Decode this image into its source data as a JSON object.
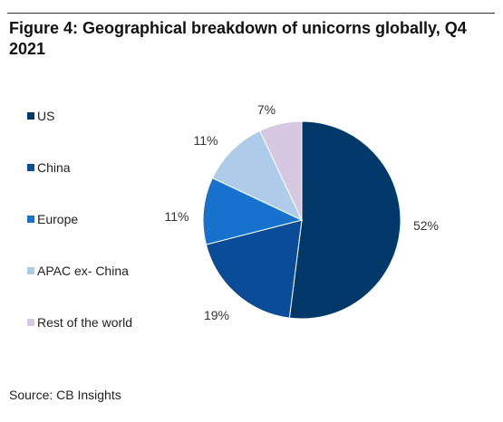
{
  "title": "Figure 4: Geographical breakdown of unicorns globally, Q4 2021",
  "source": "Source: CB Insights",
  "chart_data": {
    "type": "pie",
    "title": "Figure 4: Geographical breakdown of unicorns globally, Q4 2021",
    "start_angle_deg": 0,
    "direction": "clockwise",
    "legend_position": "left",
    "slices": [
      {
        "label": "US",
        "value": 52,
        "display": "52%",
        "color": "#003869"
      },
      {
        "label": "China",
        "value": 19,
        "display": "19%",
        "color": "#0A4C97"
      },
      {
        "label": "Europe",
        "value": 11,
        "display": "11%",
        "color": "#1772CD"
      },
      {
        "label": "APAC ex- China",
        "value": 11,
        "display": "11%",
        "color": "#AECBEA"
      },
      {
        "label": "Rest of the world",
        "value": 7,
        "display": "7%",
        "color": "#D7C8E2"
      }
    ]
  }
}
